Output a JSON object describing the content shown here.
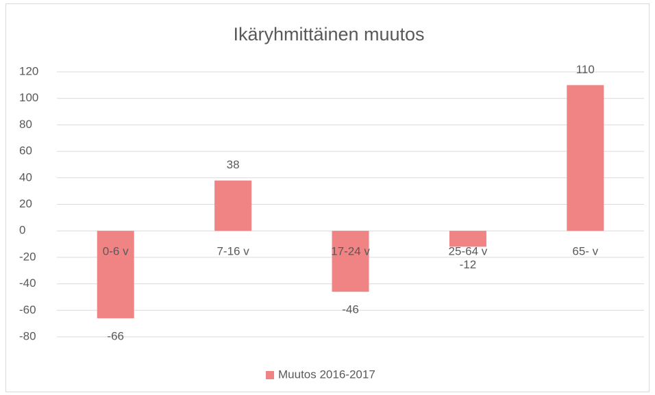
{
  "chart_data": {
    "type": "bar",
    "title": "Ikäryhmittäinen muutos",
    "categories": [
      "0-6 v",
      "7-16 v",
      "17-24 v",
      "25-64 v",
      "65- v"
    ],
    "series": [
      {
        "name": "Muutos 2016-2017",
        "color": "#f08484",
        "values": [
          -66,
          38,
          -46,
          -12,
          110
        ]
      }
    ],
    "ylim": [
      -80,
      120
    ],
    "yticks": [
      -80,
      -60,
      -40,
      -20,
      0,
      20,
      40,
      60,
      80,
      100,
      120
    ],
    "grid": true,
    "legend": "bottom"
  }
}
